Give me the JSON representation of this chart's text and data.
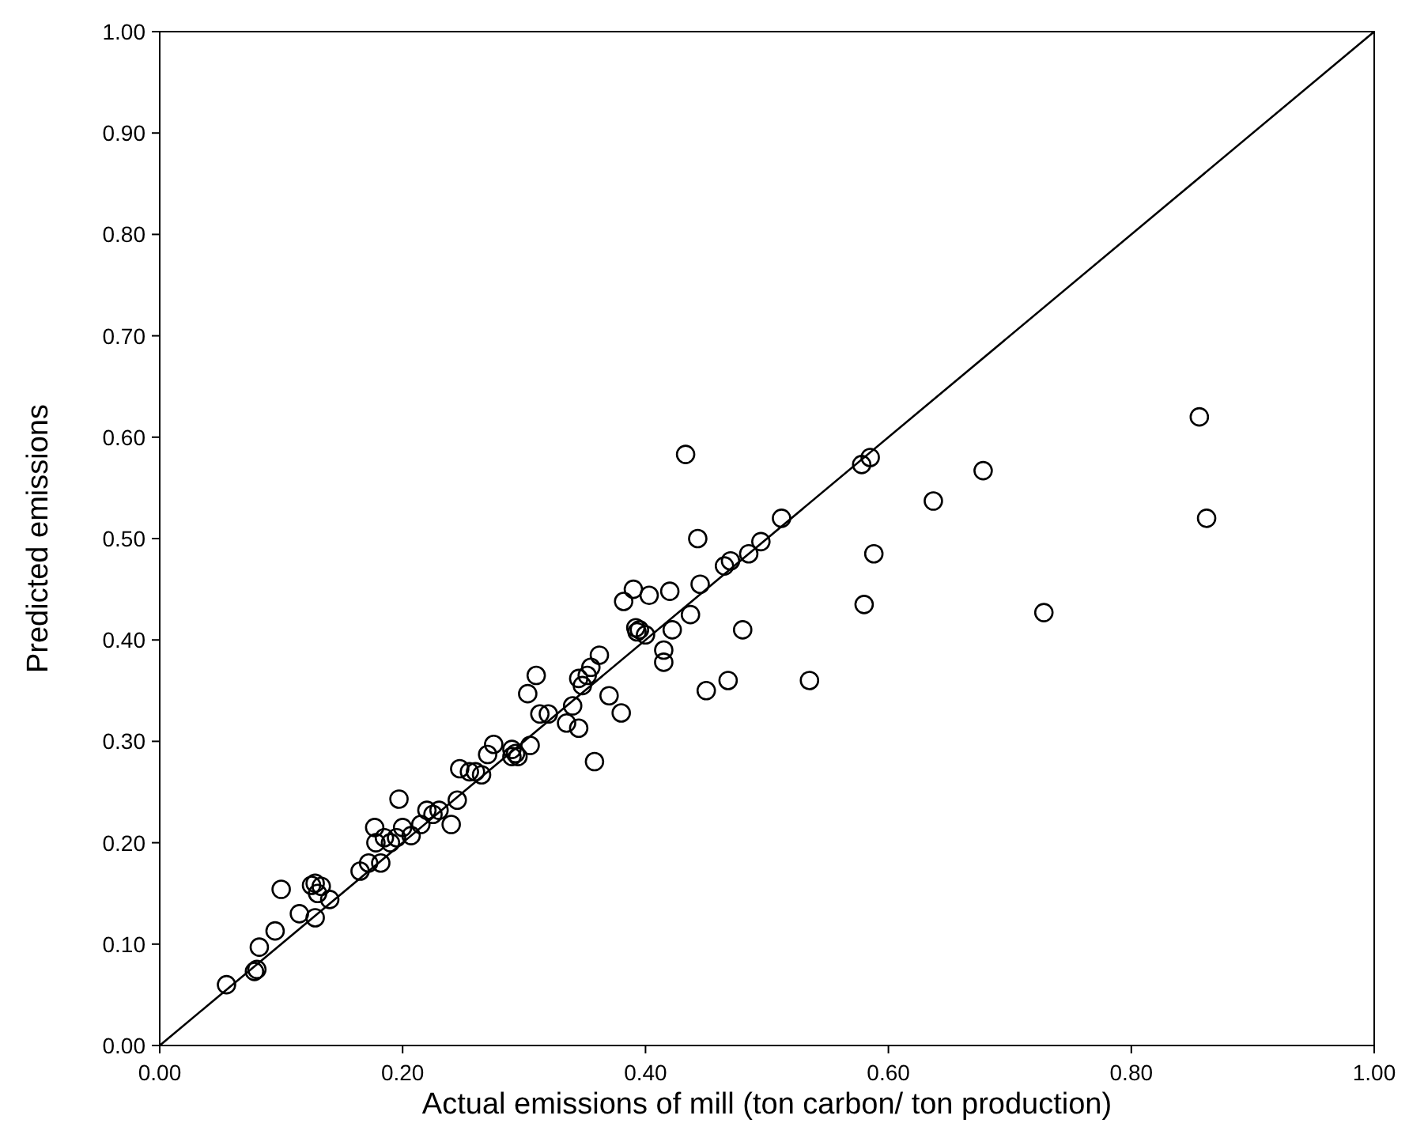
{
  "chart_data": {
    "type": "scatter",
    "xlabel": "Actual emissions of mill (ton carbon/ ton production)",
    "ylabel": "Predicted emissions",
    "marker": "circle",
    "grid": false,
    "xlim": [
      0,
      1
    ],
    "ylim": [
      0,
      1
    ],
    "xticks": [
      {
        "value": 0,
        "label": "0.00"
      },
      {
        "value": 0.2,
        "label": "0.20"
      },
      {
        "value": 0.4,
        "label": "0.40"
      },
      {
        "value": 0.6,
        "label": "0.60"
      },
      {
        "value": 0.8,
        "label": "0.80"
      },
      {
        "value": 1,
        "label": "1.00"
      }
    ],
    "yticks": [
      {
        "value": 0,
        "label": "0.00"
      },
      {
        "value": 0.1,
        "label": "0.10"
      },
      {
        "value": 0.2,
        "label": "0.20"
      },
      {
        "value": 0.3,
        "label": "0.30"
      },
      {
        "value": 0.4,
        "label": "0.40"
      },
      {
        "value": 0.5,
        "label": "0.50"
      },
      {
        "value": 0.6,
        "label": "0.60"
      },
      {
        "value": 0.7,
        "label": "0.70"
      },
      {
        "value": 0.8,
        "label": "0.80"
      },
      {
        "value": 0.9,
        "label": "0.90"
      },
      {
        "value": 1,
        "label": "1.00"
      }
    ],
    "series": [
      {
        "color": "#000000",
        "x": [
          0.055,
          0.078,
          0.08,
          0.082,
          0.095,
          0.1,
          0.115,
          0.125,
          0.128,
          0.128,
          0.13,
          0.133,
          0.14,
          0.165,
          0.172,
          0.177,
          0.178,
          0.182,
          0.185,
          0.19,
          0.195,
          0.197,
          0.2,
          0.207,
          0.215,
          0.22,
          0.225,
          0.23,
          0.24,
          0.245,
          0.247,
          0.255,
          0.26,
          0.265,
          0.27,
          0.275,
          0.29,
          0.29,
          0.293,
          0.295,
          0.303,
          0.305,
          0.31,
          0.313,
          0.32,
          0.335,
          0.34,
          0.345,
          0.345,
          0.348,
          0.352,
          0.355,
          0.358,
          0.362,
          0.37,
          0.38,
          0.382,
          0.39,
          0.392,
          0.393,
          0.395,
          0.4,
          0.403,
          0.415,
          0.415,
          0.42,
          0.422,
          0.433,
          0.437,
          0.443,
          0.445,
          0.45,
          0.465,
          0.468,
          0.47,
          0.48,
          0.485,
          0.495,
          0.512,
          0.535,
          0.578,
          0.58,
          0.585,
          0.588,
          0.637,
          0.678,
          0.728,
          0.856,
          0.862
        ],
        "values": [
          0.06,
          0.073,
          0.075,
          0.097,
          0.113,
          0.154,
          0.13,
          0.158,
          0.16,
          0.126,
          0.15,
          0.157,
          0.144,
          0.172,
          0.18,
          0.215,
          0.2,
          0.18,
          0.205,
          0.2,
          0.205,
          0.243,
          0.215,
          0.207,
          0.218,
          0.232,
          0.228,
          0.232,
          0.218,
          0.242,
          0.273,
          0.27,
          0.27,
          0.267,
          0.287,
          0.297,
          0.292,
          0.285,
          0.288,
          0.285,
          0.347,
          0.296,
          0.365,
          0.327,
          0.327,
          0.318,
          0.335,
          0.313,
          0.362,
          0.355,
          0.365,
          0.373,
          0.28,
          0.385,
          0.345,
          0.328,
          0.438,
          0.45,
          0.412,
          0.408,
          0.41,
          0.405,
          0.444,
          0.39,
          0.378,
          0.448,
          0.41,
          0.583,
          0.425,
          0.5,
          0.455,
          0.35,
          0.473,
          0.36,
          0.478,
          0.41,
          0.485,
          0.497,
          0.52,
          0.36,
          0.573,
          0.435,
          0.58,
          0.485,
          0.537,
          0.567,
          0.427,
          0.62,
          0.52
        ]
      },
      {
        "type": "line",
        "color": "#000000",
        "x": [
          0,
          1
        ],
        "values": [
          0,
          1
        ],
        "marker": "none"
      }
    ]
  }
}
